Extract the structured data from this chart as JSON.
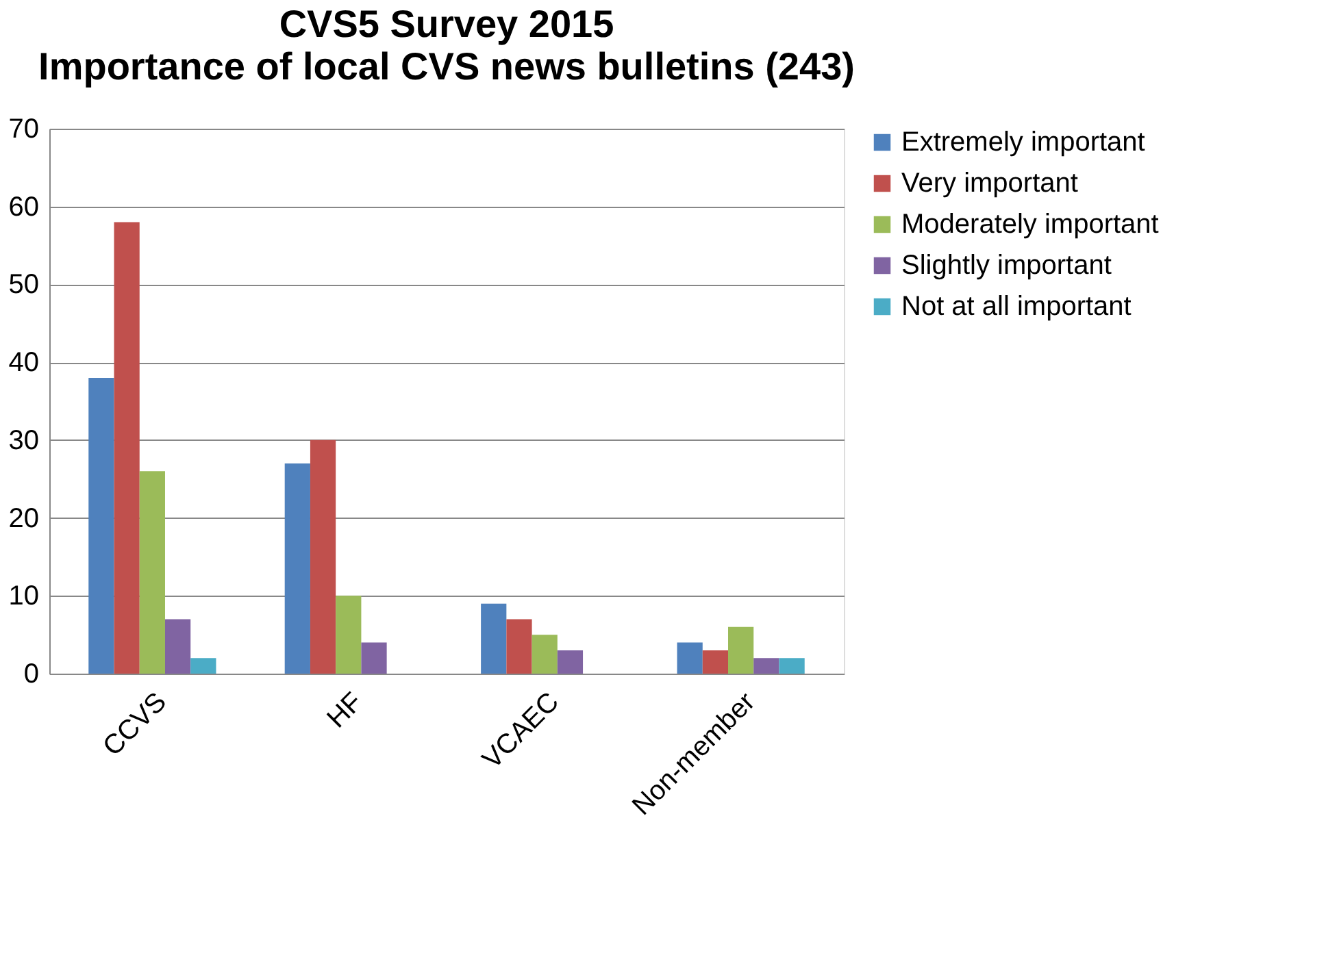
{
  "chart_data": {
    "type": "bar",
    "title": "CVS5 Survey 2015",
    "subtitle": "Importance of local CVS news bulletins (243)",
    "categories": [
      "CCVS",
      "HF",
      "VCAEC",
      "Non-member"
    ],
    "series": [
      {
        "name": "Extremely important",
        "color": "#4f81bd",
        "values": [
          38,
          27,
          9,
          4
        ]
      },
      {
        "name": "Very important",
        "color": "#c0504d",
        "values": [
          58,
          30,
          7,
          3
        ]
      },
      {
        "name": "Moderately important",
        "color": "#9bbb59",
        "values": [
          26,
          10,
          5,
          6
        ]
      },
      {
        "name": "Slightly important",
        "color": "#8064a2",
        "values": [
          7,
          4,
          3,
          2
        ]
      },
      {
        "name": "Not at all important",
        "color": "#4bacc6",
        "values": [
          2,
          null,
          null,
          2
        ]
      }
    ],
    "ylim": [
      0,
      70
    ],
    "yticks": [
      0,
      10,
      20,
      30,
      40,
      50,
      60,
      70
    ],
    "grid": "y",
    "legend": "right"
  }
}
